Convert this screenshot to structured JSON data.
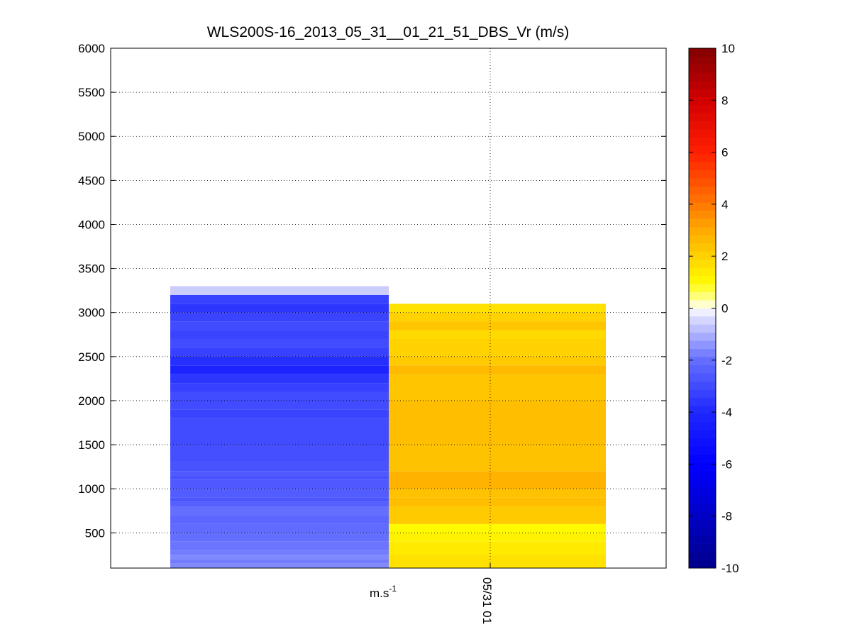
{
  "chart_data": {
    "type": "heatmap",
    "title": "WLS200S-16_2013_05_31__01_21_51_DBS_Vr (m/s)",
    "ylim": [
      100,
      6000
    ],
    "yticks": [
      500,
      1000,
      1500,
      2000,
      2500,
      3000,
      3500,
      4000,
      4500,
      5000,
      5500,
      6000
    ],
    "xtick_labels": [
      "m.s-1",
      "05/31 01"
    ],
    "grid": true,
    "colorbar": {
      "range": [
        -10,
        10
      ],
      "ticks": [
        -10,
        -8,
        -6,
        -4,
        -2,
        0,
        2,
        4,
        6,
        8,
        10
      ],
      "colormap": "blue-white-yellow-red"
    },
    "series": [
      {
        "column": 1,
        "rows": [
          [
            100,
            150,
            -1.6
          ],
          [
            150,
            200,
            -1.8
          ],
          [
            200,
            250,
            -1.6
          ],
          [
            250,
            300,
            -1.8
          ],
          [
            300,
            400,
            -1.9
          ],
          [
            400,
            500,
            -2.0
          ],
          [
            500,
            600,
            -2.1
          ],
          [
            600,
            700,
            -2.2
          ],
          [
            700,
            800,
            -2.0
          ],
          [
            800,
            850,
            -2.4
          ],
          [
            850,
            900,
            -2.7
          ],
          [
            900,
            1000,
            -2.5
          ],
          [
            1000,
            1100,
            -2.6
          ],
          [
            1100,
            1150,
            -2.8
          ],
          [
            1150,
            1200,
            -2.6
          ],
          [
            1200,
            1300,
            -2.8
          ],
          [
            1300,
            1500,
            -2.9
          ],
          [
            1500,
            1800,
            -3.0
          ],
          [
            1800,
            1900,
            -3.2
          ],
          [
            1900,
            2100,
            -3.0
          ],
          [
            2100,
            2200,
            -3.3
          ],
          [
            2200,
            2300,
            -3.6
          ],
          [
            2300,
            2400,
            -4.2
          ],
          [
            2400,
            2500,
            -3.8
          ],
          [
            2500,
            2600,
            -3.3
          ],
          [
            2600,
            2700,
            -3.0
          ],
          [
            2700,
            2800,
            -3.2
          ],
          [
            2800,
            2900,
            -3.0
          ],
          [
            2900,
            3000,
            -3.2
          ],
          [
            3000,
            3100,
            -3.6
          ],
          [
            3100,
            3200,
            -3.3
          ],
          [
            3200,
            3300,
            -0.6
          ]
        ]
      },
      {
        "column": 2,
        "rows": [
          [
            100,
            250,
            1.6
          ],
          [
            250,
            400,
            1.4
          ],
          [
            400,
            500,
            1.2
          ],
          [
            500,
            600,
            1.0
          ],
          [
            600,
            800,
            2.2
          ],
          [
            800,
            900,
            2.5
          ],
          [
            900,
            1000,
            2.4
          ],
          [
            1000,
            1200,
            2.8
          ],
          [
            1200,
            1500,
            2.4
          ],
          [
            1500,
            2000,
            2.5
          ],
          [
            2000,
            2300,
            2.3
          ],
          [
            2300,
            2400,
            2.6
          ],
          [
            2400,
            2500,
            2.2
          ],
          [
            2500,
            2700,
            2.0
          ],
          [
            2700,
            2800,
            1.8
          ],
          [
            2800,
            2900,
            2.3
          ],
          [
            2900,
            3000,
            2.0
          ],
          [
            3000,
            3100,
            1.6
          ]
        ]
      }
    ]
  }
}
